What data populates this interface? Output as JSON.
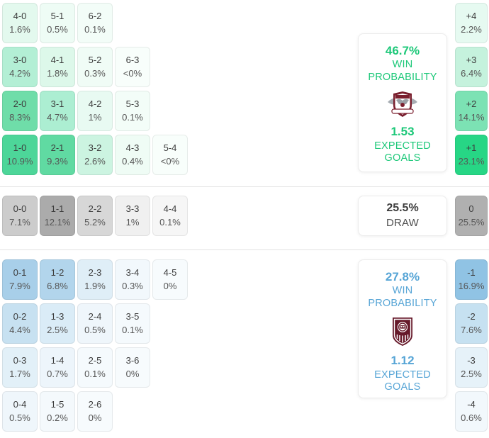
{
  "accent": {
    "green": "#1dc879",
    "blue": "#57a5d6",
    "draw_text": "#4a4a4a"
  },
  "home_grid": {
    "rows": [
      {
        "cells": [
          {
            "score": "4-0",
            "pct": "1.6%",
            "bg": "#e3f9ee"
          },
          {
            "score": "5-1",
            "pct": "0.5%",
            "bg": "#eefcf5"
          },
          {
            "score": "6-2",
            "pct": "0.1%",
            "bg": "#f3fdf8"
          }
        ]
      },
      {
        "cells": [
          {
            "score": "3-0",
            "pct": "4.2%",
            "bg": "#b3efd5"
          },
          {
            "score": "4-1",
            "pct": "1.8%",
            "bg": "#ddf8ea"
          },
          {
            "score": "5-2",
            "pct": "0.3%",
            "bg": "#f0fcf6"
          },
          {
            "score": "6-3",
            "pct": "<0%",
            "bg": "#f8fefb"
          }
        ]
      },
      {
        "cells": [
          {
            "score": "2-0",
            "pct": "8.3%",
            "bg": "#6fdda9"
          },
          {
            "score": "3-1",
            "pct": "4.7%",
            "bg": "#aceed2"
          },
          {
            "score": "4-2",
            "pct": "1%",
            "bg": "#e8faf2"
          },
          {
            "score": "5-3",
            "pct": "0.1%",
            "bg": "#f3fdf8"
          }
        ]
      },
      {
        "cells": [
          {
            "score": "1-0",
            "pct": "10.9%",
            "bg": "#4dd699"
          },
          {
            "score": "2-1",
            "pct": "9.3%",
            "bg": "#60daa2"
          },
          {
            "score": "3-2",
            "pct": "2.6%",
            "bg": "#ccf4e1"
          },
          {
            "score": "4-3",
            "pct": "0.4%",
            "bg": "#effcf5"
          },
          {
            "score": "5-4",
            "pct": "<0%",
            "bg": "#f8fefb"
          }
        ]
      }
    ]
  },
  "draw_row": {
    "cells": [
      {
        "score": "0-0",
        "pct": "7.1%",
        "bg": "#cccccc"
      },
      {
        "score": "1-1",
        "pct": "12.1%",
        "bg": "#ababab"
      },
      {
        "score": "2-2",
        "pct": "5.2%",
        "bg": "#d7d7d7"
      },
      {
        "score": "3-3",
        "pct": "1%",
        "bg": "#f0f0f0"
      },
      {
        "score": "4-4",
        "pct": "0.1%",
        "bg": "#f6f6f6"
      }
    ]
  },
  "away_grid": {
    "rows": [
      {
        "cells": [
          {
            "score": "0-1",
            "pct": "7.9%",
            "bg": "#a8cfe9"
          },
          {
            "score": "1-2",
            "pct": "6.8%",
            "bg": "#b2d5ec"
          },
          {
            "score": "2-3",
            "pct": "1.9%",
            "bg": "#dfeef7"
          },
          {
            "score": "3-4",
            "pct": "0.3%",
            "bg": "#f2f8fc"
          },
          {
            "score": "4-5",
            "pct": "0%",
            "bg": "#f7fbfd"
          }
        ]
      },
      {
        "cells": [
          {
            "score": "0-2",
            "pct": "4.4%",
            "bg": "#c7e1f1"
          },
          {
            "score": "1-3",
            "pct": "2.5%",
            "bg": "#daecf7"
          },
          {
            "score": "2-4",
            "pct": "0.5%",
            "bg": "#eff6fb"
          },
          {
            "score": "3-5",
            "pct": "0.1%",
            "bg": "#f5fafd"
          }
        ]
      },
      {
        "cells": [
          {
            "score": "0-3",
            "pct": "1.7%",
            "bg": "#e2f0f8"
          },
          {
            "score": "1-4",
            "pct": "0.7%",
            "bg": "#edf5fb"
          },
          {
            "score": "2-5",
            "pct": "0.1%",
            "bg": "#f5fafd"
          },
          {
            "score": "3-6",
            "pct": "0%",
            "bg": "#f7fbfd"
          }
        ]
      },
      {
        "cells": [
          {
            "score": "0-4",
            "pct": "0.5%",
            "bg": "#eff6fb"
          },
          {
            "score": "1-5",
            "pct": "0.2%",
            "bg": "#f4f9fc"
          },
          {
            "score": "2-6",
            "pct": "0%",
            "bg": "#f7fbfd"
          }
        ]
      }
    ]
  },
  "diff_column": {
    "top": [
      {
        "label": "+4",
        "pct": "2.2%",
        "bg": "#e6faf1"
      },
      {
        "label": "+3",
        "pct": "6.4%",
        "bg": "#c5f2dd"
      },
      {
        "label": "+2",
        "pct": "14.1%",
        "bg": "#7ce2b4"
      },
      {
        "label": "+1",
        "pct": "23.1%",
        "bg": "#27d685"
      }
    ],
    "draw": {
      "label": "0",
      "pct": "25.5%",
      "bg": "#b0b0b0"
    },
    "bottom": [
      {
        "label": "-1",
        "pct": "16.9%",
        "bg": "#90c3e4"
      },
      {
        "label": "-2",
        "pct": "7.6%",
        "bg": "#c6e1f1"
      },
      {
        "label": "-3",
        "pct": "2.5%",
        "bg": "#e6f2f9"
      },
      {
        "label": "-4",
        "pct": "0.6%",
        "bg": "#f2f8fc"
      }
    ]
  },
  "summary": {
    "home": {
      "win_pct": "46.7%",
      "win_line1": "WIN",
      "win_line2": "PROBABILITY",
      "xg": "1.53",
      "xg_line1": "EXPECTED",
      "xg_line2": "GOALS",
      "crest": "home-team-crest"
    },
    "draw": {
      "pct": "25.5%",
      "label": "DRAW"
    },
    "away": {
      "win_pct": "27.8%",
      "win_line1": "WIN",
      "win_line2": "PROBABILITY",
      "xg": "1.12",
      "xg_line1": "EXPECTED",
      "xg_line2": "GOALS",
      "crest": "away-team-crest"
    }
  },
  "crest_colors": {
    "maroon": "#7a1f2e",
    "dark_maroon": "#66192a",
    "wing_gray": "#a7adb3",
    "white": "#ffffff"
  }
}
